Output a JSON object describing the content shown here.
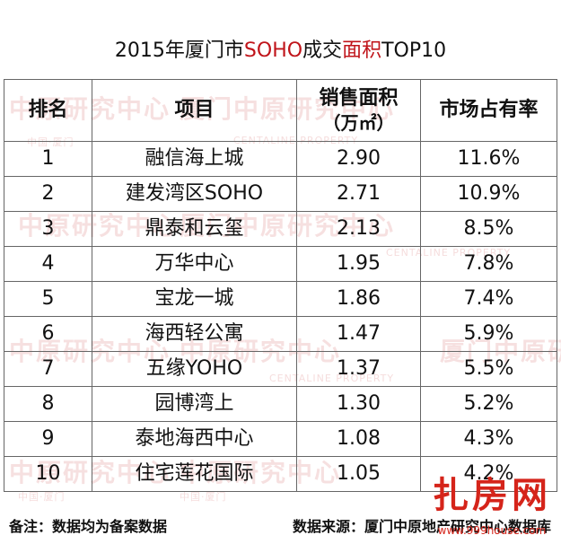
{
  "title": {
    "prefix": "2015年厦门市",
    "highlight1": "SOHO",
    "middle": "成交",
    "highlight2": "面积",
    "suffix": "TOP10"
  },
  "table": {
    "headers": {
      "rank": "排名",
      "project": "项目",
      "area": "销售面积",
      "area_unit": "（万㎡）",
      "share": "市场占有率"
    },
    "rows": [
      {
        "rank": "1",
        "project": "融信海上城",
        "area": "2.90",
        "share": "11.6%"
      },
      {
        "rank": "2",
        "project": "建发湾区SOHO",
        "area": "2.71",
        "share": "10.9%"
      },
      {
        "rank": "3",
        "project": "鼎泰和云玺",
        "area": "2.13",
        "share": "8.5%"
      },
      {
        "rank": "4",
        "project": "万华中心",
        "area": "1.95",
        "share": "7.8%"
      },
      {
        "rank": "5",
        "project": "宝龙一城",
        "area": "1.86",
        "share": "7.4%"
      },
      {
        "rank": "6",
        "project": "海西轻公寓",
        "area": "1.47",
        "share": "5.9%"
      },
      {
        "rank": "7",
        "project": "五缘YOHO",
        "area": "1.37",
        "share": "5.5%"
      },
      {
        "rank": "8",
        "project": "园博湾上",
        "area": "1.30",
        "share": "5.2%"
      },
      {
        "rank": "9",
        "project": "泰地海西中心",
        "area": "1.08",
        "share": "4.3%"
      },
      {
        "rank": "10",
        "project": "住宅莲花国际",
        "area": "1.05",
        "share": "4.2%"
      }
    ]
  },
  "footer": {
    "note": "备注：数据均为备案数据",
    "source": "数据来源：厦门中原地产研究中心数据库"
  },
  "watermark": {
    "text1": "中原研究中心",
    "text2": "厦门中原研究中心",
    "text3": "中国·厦门",
    "text4": "CENTALINE PROPERTY"
  },
  "logo": {
    "text": "扎房网",
    "url": "www.999house.com"
  },
  "colors": {
    "highlight": "#c0141a",
    "watermark": "#c83c3c",
    "border": "#666666",
    "logo": "#d5241a"
  }
}
